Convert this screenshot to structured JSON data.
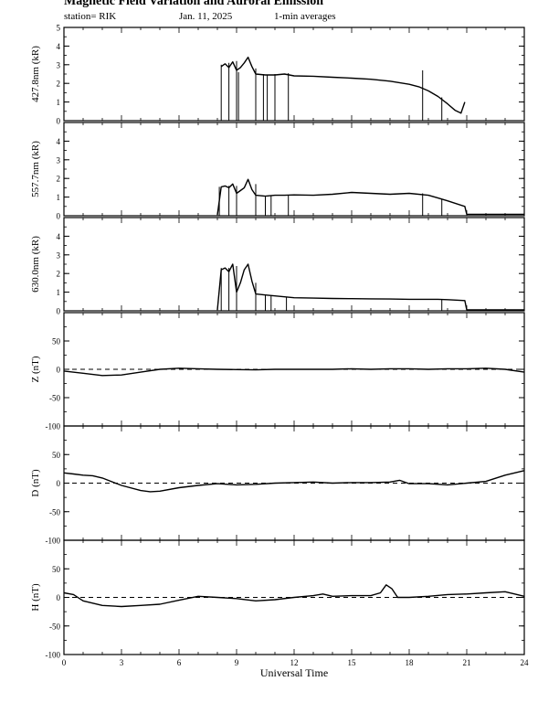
{
  "header": {
    "title": "Magnetic Field Variation and Auroral Emission",
    "station": "station= RIK",
    "date": "Jan. 11, 2025",
    "averaging": "1-min averages"
  },
  "chart_data": [
    {
      "type": "line",
      "ylabel": "427.8nm (kR)",
      "ylim": [
        0,
        5
      ],
      "yticks": [
        0,
        1,
        2,
        3,
        4,
        5
      ],
      "xlim": [
        0,
        24
      ],
      "zero_line": false,
      "series": [
        {
          "x": [
            8.2,
            8.4,
            8.6,
            8.8,
            9.0,
            9.2,
            9.4,
            9.6,
            9.8,
            10.0,
            10.5,
            11.0,
            11.5,
            12,
            13,
            14,
            15,
            16,
            17,
            18,
            18.5,
            19,
            19.5,
            20,
            20.4,
            20.7,
            20.9
          ],
          "y": [
            2.9,
            3.05,
            2.85,
            3.15,
            2.7,
            2.85,
            3.1,
            3.4,
            2.9,
            2.5,
            2.45,
            2.45,
            2.5,
            2.4,
            2.38,
            2.33,
            2.28,
            2.22,
            2.12,
            1.95,
            1.82,
            1.6,
            1.3,
            0.9,
            0.55,
            0.4,
            1.0
          ]
        }
      ],
      "spikes": [
        [
          8.2,
          3.0,
          0
        ],
        [
          8.6,
          3.1,
          0
        ],
        [
          9.0,
          3.2,
          0
        ],
        [
          9.1,
          2.6,
          0
        ],
        [
          10.0,
          2.8,
          0
        ],
        [
          10.4,
          2.5,
          0
        ],
        [
          10.6,
          2.45,
          0
        ],
        [
          11.0,
          2.5,
          0
        ],
        [
          11.7,
          2.55,
          0
        ],
        [
          18.7,
          2.7,
          0
        ],
        [
          19.7,
          1.25,
          0
        ]
      ]
    },
    {
      "type": "line",
      "ylabel": "557.7nm (kR)",
      "ylim": [
        0,
        5
      ],
      "yticks": [
        0,
        1,
        2,
        3,
        4
      ],
      "xlim": [
        0,
        24
      ],
      "zero_line": false,
      "series": [
        {
          "x": [
            8.0,
            8.2,
            8.4,
            8.6,
            8.8,
            9.0,
            9.2,
            9.4,
            9.6,
            9.8,
            10.0,
            10.5,
            11.0,
            11.5,
            12,
            13,
            14,
            15,
            16,
            17,
            18,
            19,
            19.5,
            20,
            20.9,
            21.0,
            21.5,
            22,
            23,
            24
          ],
          "y": [
            0.05,
            1.55,
            1.6,
            1.5,
            1.7,
            1.2,
            1.35,
            1.5,
            1.95,
            1.4,
            1.1,
            1.05,
            1.1,
            1.1,
            1.12,
            1.1,
            1.15,
            1.25,
            1.2,
            1.15,
            1.2,
            1.1,
            0.95,
            0.8,
            0.5,
            0.08,
            0.08,
            0.08,
            0.08,
            0.08
          ]
        }
      ],
      "spikes": [
        [
          8.1,
          1.55,
          0
        ],
        [
          8.6,
          1.6,
          0
        ],
        [
          9.0,
          1.6,
          0
        ],
        [
          10.0,
          1.7,
          0
        ],
        [
          10.5,
          1.05,
          0
        ],
        [
          10.8,
          1.1,
          0
        ],
        [
          11.7,
          1.1,
          0
        ],
        [
          18.7,
          1.2,
          0
        ],
        [
          19.7,
          0.9,
          0
        ]
      ]
    },
    {
      "type": "line",
      "ylabel": "630.0nm (kR)",
      "ylim": [
        0,
        5
      ],
      "yticks": [
        0,
        1,
        2,
        3,
        4
      ],
      "xlim": [
        0,
        24
      ],
      "zero_line": false,
      "series": [
        {
          "x": [
            8.0,
            8.2,
            8.4,
            8.6,
            8.8,
            9.0,
            9.2,
            9.4,
            9.6,
            9.8,
            10.0,
            10.5,
            11.0,
            11.5,
            12,
            13,
            14,
            15,
            16,
            17,
            18,
            19,
            19.5,
            20,
            20.9,
            21.0,
            21.5,
            22,
            23,
            24
          ],
          "y": [
            0.05,
            2.2,
            2.3,
            2.1,
            2.5,
            1.0,
            1.5,
            2.2,
            2.5,
            1.6,
            0.9,
            0.85,
            0.8,
            0.75,
            0.7,
            0.68,
            0.66,
            0.65,
            0.64,
            0.63,
            0.62,
            0.62,
            0.62,
            0.6,
            0.55,
            0.05,
            0.05,
            0.05,
            0.05,
            0.05
          ]
        }
      ],
      "spikes": [
        [
          8.2,
          2.3,
          0
        ],
        [
          8.6,
          2.3,
          0
        ],
        [
          9.0,
          2.4,
          0
        ],
        [
          10.0,
          1.5,
          0
        ],
        [
          10.5,
          0.85,
          0
        ],
        [
          10.8,
          0.8,
          0
        ],
        [
          11.6,
          0.75,
          0
        ],
        [
          19.7,
          0.6,
          0
        ]
      ]
    },
    {
      "type": "line",
      "ylabel": "Z (nT)",
      "ylim": [
        -100,
        100
      ],
      "yticks": [
        -100,
        -50,
        0,
        50
      ],
      "xlim": [
        0,
        24
      ],
      "zero_line": true,
      "series": [
        {
          "x": [
            0,
            1,
            2,
            3,
            4,
            5,
            6,
            7,
            8,
            9,
            10,
            11,
            12,
            13,
            14,
            15,
            16,
            17,
            18,
            19,
            20,
            21,
            22,
            23,
            24
          ],
          "y": [
            -3,
            -7,
            -11,
            -10,
            -5,
            0,
            2,
            1,
            0,
            -0.5,
            -1,
            0,
            0,
            0,
            0,
            1,
            0,
            1,
            1,
            0,
            1,
            1,
            2,
            0,
            -5
          ]
        }
      ],
      "spikes": []
    },
    {
      "type": "line",
      "ylabel": "D (nT)",
      "ylim": [
        -100,
        100
      ],
      "yticks": [
        -100,
        -50,
        0,
        50
      ],
      "xlim": [
        0,
        24
      ],
      "zero_line": true,
      "series": [
        {
          "x": [
            0,
            0.5,
            1,
            1.5,
            2,
            3,
            4,
            4.5,
            5,
            6,
            7,
            8,
            9,
            10,
            11,
            12,
            13,
            14,
            15,
            16,
            17,
            17.5,
            18,
            19,
            20,
            21,
            22,
            23,
            24
          ],
          "y": [
            18,
            16,
            14,
            13,
            9,
            -4,
            -13,
            -15,
            -14,
            -8,
            -4,
            -1,
            -3,
            -2,
            0,
            1,
            2,
            0,
            1,
            1,
            2,
            5,
            -1,
            -1,
            -3,
            0,
            3,
            14,
            22
          ]
        }
      ],
      "spikes": []
    },
    {
      "type": "line",
      "ylabel": "H (nT)",
      "ylim": [
        -100,
        100
      ],
      "yticks": [
        -100,
        -50,
        0,
        50
      ],
      "xlim": [
        0,
        24
      ],
      "zero_line": true,
      "xticks": [
        0,
        3,
        6,
        9,
        12,
        15,
        18,
        21,
        24
      ],
      "xlabel": "Universal Time",
      "series": [
        {
          "x": [
            0,
            0.5,
            1,
            2,
            3,
            4,
            5,
            6,
            7,
            8,
            9,
            10,
            11,
            12,
            13,
            13.5,
            14,
            15,
            16,
            16.5,
            16.8,
            17.1,
            17.4,
            18,
            19,
            20,
            21,
            22,
            23,
            23.5,
            24
          ],
          "y": [
            8,
            5,
            -6,
            -14,
            -16,
            -14,
            -12,
            -5,
            2,
            0,
            -2,
            -6,
            -4,
            0,
            3,
            6,
            2,
            3,
            3,
            8,
            22,
            15,
            0,
            0,
            2,
            5,
            6,
            8,
            10,
            6,
            2
          ]
        }
      ],
      "spikes": []
    }
  ]
}
